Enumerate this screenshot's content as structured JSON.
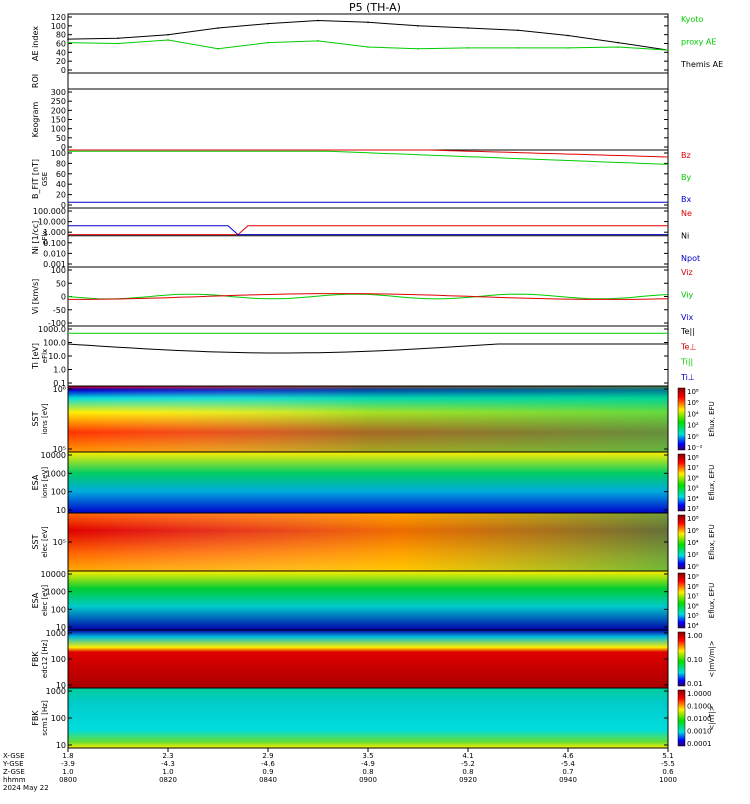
{
  "title": "P5 (TH-A)",
  "colors": {
    "black": "#000000",
    "green": "#00cc00",
    "red": "#e00000",
    "blue": "#0000cc",
    "orange": "#ff9900",
    "yellow": "#ffee00",
    "cyan": "#00dddd"
  },
  "panels": [
    {
      "id": "ae",
      "ylabel": "AE index",
      "ticks": [
        "120",
        "100",
        "80",
        "60",
        "40",
        "20",
        "0"
      ],
      "legend": [
        {
          "text": "Kyoto",
          "color": "#00cc00"
        },
        {
          "text": "proxy AE",
          "color": "#00cc00"
        },
        {
          "text": "Themis AE",
          "color": "#000000"
        }
      ]
    },
    {
      "id": "roi",
      "ylabel": "ROI",
      "ticks": [],
      "legend": []
    },
    {
      "id": "keogram",
      "ylabel": "Keogram",
      "ticks": [
        "300",
        "250",
        "200",
        "150",
        "100",
        "50",
        "0"
      ],
      "legend": []
    },
    {
      "id": "bfit",
      "ylabel": "B_FIT [nT]",
      "ylabel2": "GSE",
      "ticks": [
        "100",
        "80",
        "60",
        "40",
        "20",
        "0"
      ],
      "legend": [
        {
          "text": "Bz",
          "color": "#e00000"
        },
        {
          "text": "By",
          "color": "#00cc00"
        },
        {
          "text": "Bx",
          "color": "#0000cc"
        }
      ]
    },
    {
      "id": "ni",
      "ylabel": "Ni [1/cc]",
      "ylabel2": "eFlx",
      "ticks": [
        "100.000",
        "10.000",
        "1.000",
        "0.100",
        "0.010",
        "0.001"
      ],
      "legend": [
        {
          "text": "Ne",
          "color": "#e00000"
        },
        {
          "text": "Ni",
          "color": "#000000"
        },
        {
          "text": "Npot",
          "color": "#0000cc"
        }
      ]
    },
    {
      "id": "vi",
      "ylabel": "Vi [km/s]",
      "ticks": [
        "100",
        "50",
        "0",
        "-50",
        "-100"
      ],
      "legend": [
        {
          "text": "Viz",
          "color": "#e00000"
        },
        {
          "text": "Viy",
          "color": "#00cc00"
        },
        {
          "text": "Vix",
          "color": "#0000cc"
        }
      ]
    },
    {
      "id": "ti",
      "ylabel": "Ti [eV]",
      "ylabel2": "eFlx",
      "ticks": [
        "1000.0",
        "100.0",
        "10.0",
        "1.0",
        "0.1"
      ],
      "legend": [
        {
          "text": "Te||",
          "color": "#000000"
        },
        {
          "text": "Te⊥",
          "color": "#e00000"
        },
        {
          "text": "Ti||",
          "color": "#00cc00"
        },
        {
          "text": "Ti⊥",
          "color": "#0000cc"
        }
      ]
    },
    {
      "id": "sst_i",
      "ylabel": "SST",
      "ylabel2": "ions [eV]",
      "ticks": [
        "10⁶",
        "10⁵"
      ],
      "cb_ticks": [
        "10⁸",
        "10⁶",
        "10⁴",
        "10²",
        "10⁰",
        "10⁻²"
      ],
      "cb_label": "Eflux, EFU"
    },
    {
      "id": "esa_i",
      "ylabel": "ESA",
      "ylabel2": "ions [eV]",
      "ticks": [
        "10000",
        "1000",
        "100",
        "10"
      ],
      "cb_ticks": [
        "10⁸",
        "10⁷",
        "10⁶",
        "10⁵",
        "10⁴",
        "10³"
      ],
      "cb_label": "Eflux, EFU"
    },
    {
      "id": "sst_e",
      "ylabel": "SST",
      "ylabel2": "elec [eV]",
      "ticks": [
        "10⁵"
      ],
      "cb_ticks": [
        "10⁸",
        "10⁶",
        "10⁴",
        "10²",
        "10⁰"
      ],
      "cb_label": "Eflux, EFU"
    },
    {
      "id": "esa_e",
      "ylabel": "ESA",
      "ylabel2": "elec [eV]",
      "ticks": [
        "10000",
        "1000",
        "100",
        "10"
      ],
      "cb_ticks": [
        "10⁹",
        "10⁸",
        "10⁷",
        "10⁶",
        "10⁵",
        "10⁴"
      ],
      "cb_label": "Eflux, EFU"
    },
    {
      "id": "fbk_e",
      "ylabel": "FBK",
      "ylabel2": "edc12 [Hz]",
      "ticks": [
        "1000",
        "100",
        "10"
      ],
      "cb_ticks": [
        "1.00",
        "0.10",
        "0.01"
      ],
      "cb_label": "<|mV/m|>"
    },
    {
      "id": "fbk_b",
      "ylabel": "FBK",
      "ylabel2": "scm1 [Hz]",
      "ticks": [
        "1000",
        "100",
        "10"
      ],
      "cb_ticks": [
        "1.0000",
        "0.1000",
        "0.0100",
        "0.0010",
        "0.0001"
      ],
      "cb_label": "<|nT|>"
    }
  ],
  "xaxis": {
    "row_labels": [
      "X-GSE",
      "Y-GSE",
      "Z-GSE",
      "hhmm",
      "2024 May 22"
    ],
    "columns": [
      [
        "1.8",
        "-3.9",
        "1.0",
        "0800"
      ],
      [
        "2.3",
        "-4.3",
        "1.0",
        "0820"
      ],
      [
        "2.9",
        "-4.6",
        "0.9",
        "0840"
      ],
      [
        "3.5",
        "-4.9",
        "0.8",
        "0900"
      ],
      [
        "4.1",
        "-5.2",
        "0.8",
        "0920"
      ],
      [
        "4.6",
        "-5.4",
        "0.7",
        "0940"
      ],
      [
        "5.1",
        "-5.5",
        "0.6",
        "1000"
      ]
    ]
  },
  "chart_data": {
    "type": "line",
    "title": "P5 (TH-A)",
    "x": [
      "0800",
      "0810",
      "0820",
      "0830",
      "0840",
      "0850",
      "0900",
      "0910",
      "0920",
      "0930",
      "0940",
      "0950",
      "1000"
    ],
    "series": [
      {
        "name": "Themis AE",
        "values": [
          70,
          72,
          80,
          95,
          105,
          112,
          108,
          100,
          95,
          90,
          78,
          62,
          45
        ]
      },
      {
        "name": "Kyoto proxy AE",
        "values": [
          62,
          60,
          68,
          48,
          62,
          66,
          52,
          48,
          50,
          50,
          50,
          52,
          45
        ]
      }
    ],
    "ylabel": "AE index",
    "ylim": [
      0,
      120
    ]
  }
}
